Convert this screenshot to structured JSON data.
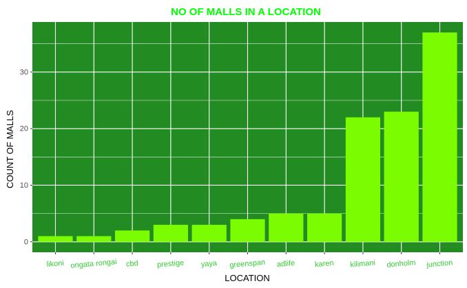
{
  "chart_data": {
    "type": "bar",
    "title": "NO OF MALLS IN A LOCATION",
    "xlabel": "LOCATION",
    "ylabel": "COUNT OF MALLS",
    "categories": [
      "likoni",
      "ongata rongai",
      "cbd",
      "prestige",
      "yaya",
      "greenspan",
      "adlife",
      "karen",
      "kilimani",
      "donholm",
      "junction"
    ],
    "values": [
      1,
      1,
      2,
      3,
      3,
      4,
      5,
      5,
      22,
      23,
      37
    ],
    "ylim": [
      -1.85,
      38.85
    ],
    "yticks": [
      0,
      10,
      20,
      30
    ],
    "grid": true,
    "legend": "none"
  },
  "colors": {
    "panel": "#228B22",
    "bar": "#7CFC00",
    "grid": "#FFFFFF",
    "title": "#00FF00",
    "tick_label": "#32CD32",
    "axis_label": "#000000",
    "y_tick_label": "#4D4D4D"
  }
}
